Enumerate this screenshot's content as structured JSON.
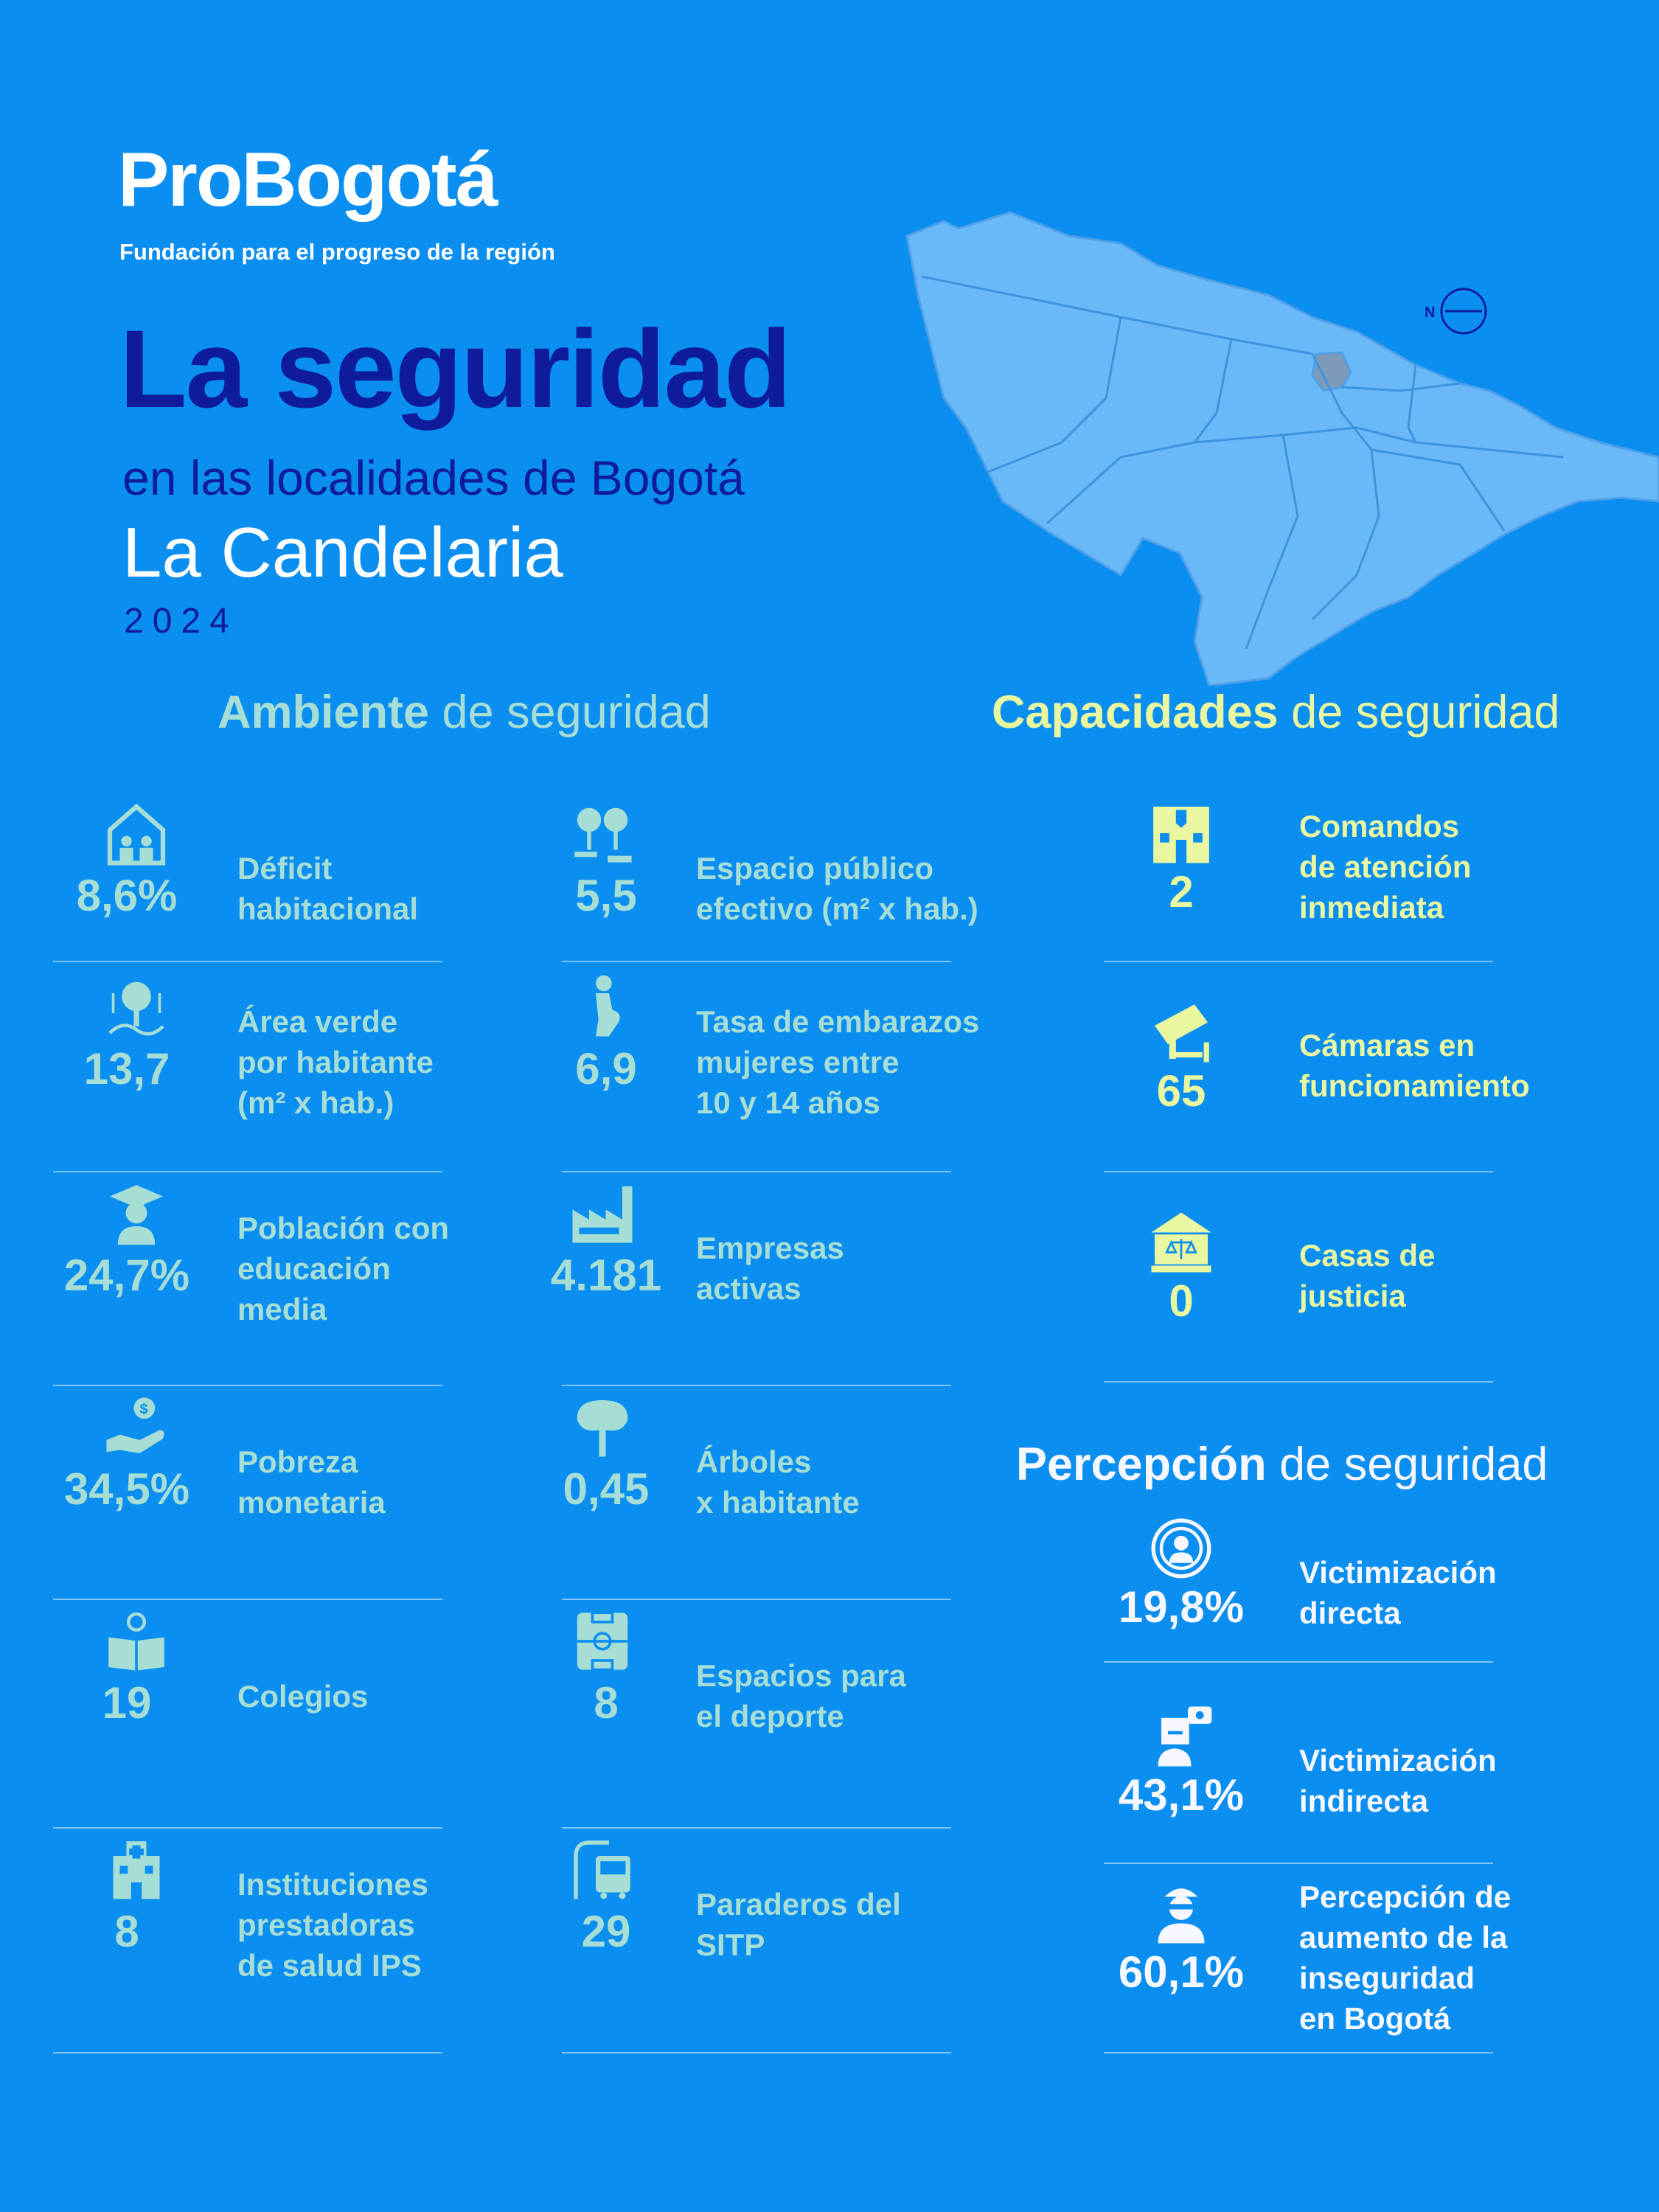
{
  "brand": {
    "name": "ProBogotá",
    "tagline": "Fundación para el progreso de la región"
  },
  "title": {
    "main": "La seguridad",
    "subtitle": "en las localidades de Bogotá",
    "locality": "La Candelaria",
    "year": "2024"
  },
  "map": {
    "compass_label": "N"
  },
  "sections": {
    "ambiente": {
      "bold": "Ambiente",
      "rest": " de seguridad"
    },
    "capacidades": {
      "bold": "Capacidades",
      "rest": " de seguridad"
    },
    "percepcion": {
      "bold": "Percepción",
      "rest": " de seguridad"
    }
  },
  "ambiente_left": [
    {
      "value": "8,6%",
      "label": "Déficit\nhabitacional",
      "icon": "house-family-icon"
    },
    {
      "value": "13,7",
      "label": "Área verde\npor habitante\n(m² x hab.)",
      "icon": "tree-area-icon"
    },
    {
      "value": "24,7%",
      "label": "Población con\neducación\nmedia",
      "icon": "graduate-icon"
    },
    {
      "value": "34,5%",
      "label": "Pobreza\nmonetaria",
      "icon": "hand-money-icon"
    },
    {
      "value": "19",
      "label": "Colegios",
      "icon": "book-bulb-icon"
    },
    {
      "value": "8",
      "label": "Instituciones\nprestadoras\nde salud IPS",
      "icon": "hospital-icon"
    }
  ],
  "ambiente_right": [
    {
      "value": "5,5",
      "label": "Espacio público\nefectivo (m² x hab.)",
      "icon": "park-icon"
    },
    {
      "value": "6,9",
      "label": "Tasa de embarazos\nmujeres entre\n10 y 14 años",
      "icon": "pregnant-icon"
    },
    {
      "value": "4.181",
      "label": "Empresas\nactivas",
      "icon": "factory-icon"
    },
    {
      "value": "0,45",
      "label": "Árboles\nx habitante",
      "icon": "tree-icon"
    },
    {
      "value": "8",
      "label": "Espacios para\nel deporte",
      "icon": "sports-field-icon"
    },
    {
      "value": "29",
      "label": "Paraderos del\nSITP",
      "icon": "bus-stop-icon"
    }
  ],
  "capacidades": [
    {
      "value": "2",
      "label": "Comandos\nde atención\ninmediata",
      "icon": "police-building-icon"
    },
    {
      "value": "65",
      "label": "Cámaras en\nfuncionamiento",
      "icon": "camera-icon"
    },
    {
      "value": "0",
      "label": "Casas de\njusticia",
      "icon": "justice-house-icon"
    }
  ],
  "percepcion": [
    {
      "value": "19,8%",
      "label": "Victimización\ndirecta",
      "icon": "target-person-icon"
    },
    {
      "value": "43,1%",
      "label": "Victimización\nindirecta",
      "icon": "witness-icon"
    },
    {
      "value": "60,1%",
      "label": "Percepción de\naumento de la\ninseguridad\nen Bogotá",
      "icon": "thief-icon"
    }
  ],
  "colors": {
    "background": "#0A8EF0",
    "green": "#A6DDD5",
    "yellow": "#E9F7A0",
    "white": "#F6F7FF",
    "navy": "#0E1C9C",
    "map_fill": "#69B8F8",
    "map_highlight": "#7D9BB8"
  }
}
